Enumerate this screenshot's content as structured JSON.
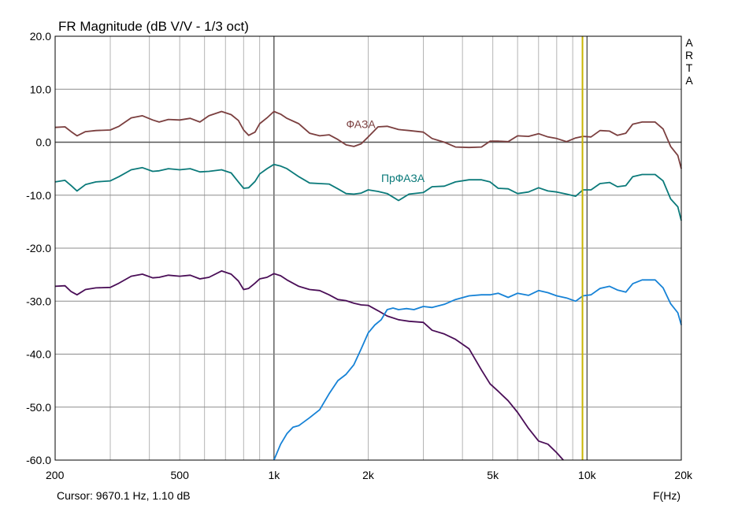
{
  "chart_data": {
    "type": "line",
    "title": "FR Magnitude (dB V/V - 1/3 oct)",
    "xlabel": "F(Hz)",
    "ylabel": "",
    "x_scale": "log",
    "xlim": [
      200,
      20000
    ],
    "ylim": [
      -60,
      20
    ],
    "grid": true,
    "brand": "ARTA",
    "cursor_readout": "Cursor: 9670.1 Hz, 1.10 dB",
    "cursor_freq": 9670.1,
    "x_ticks": [
      {
        "value": 200,
        "label": "200"
      },
      {
        "value": 500,
        "label": "500"
      },
      {
        "value": 1000,
        "label": "1k"
      },
      {
        "value": 2000,
        "label": "2k"
      },
      {
        "value": 5000,
        "label": "5k"
      },
      {
        "value": 10000,
        "label": "10k"
      },
      {
        "value": 20000,
        "label": "20k"
      }
    ],
    "y_ticks": [
      {
        "value": 20,
        "label": "20.0"
      },
      {
        "value": 10,
        "label": "10.0"
      },
      {
        "value": 0,
        "label": "0.0"
      },
      {
        "value": -10,
        "label": "-10.0"
      },
      {
        "value": -20,
        "label": "-20.0"
      },
      {
        "value": -30,
        "label": "-30.0"
      },
      {
        "value": -40,
        "label": "-40.0"
      },
      {
        "value": -50,
        "label": "-50.0"
      },
      {
        "value": -60,
        "label": "-60.0"
      }
    ],
    "series": [
      {
        "name": "ФАЗА",
        "color": "#7b3f3f",
        "label_at": [
          1700,
          2.7
        ],
        "points": [
          [
            200,
            2.8
          ],
          [
            215,
            2.9
          ],
          [
            225,
            2.0
          ],
          [
            235,
            1.2
          ],
          [
            250,
            2.0
          ],
          [
            270,
            2.2
          ],
          [
            300,
            2.3
          ],
          [
            320,
            3.0
          ],
          [
            350,
            4.6
          ],
          [
            380,
            5.0
          ],
          [
            410,
            4.2
          ],
          [
            430,
            3.8
          ],
          [
            460,
            4.3
          ],
          [
            500,
            4.2
          ],
          [
            540,
            4.5
          ],
          [
            580,
            3.8
          ],
          [
            620,
            5.0
          ],
          [
            680,
            5.8
          ],
          [
            730,
            5.2
          ],
          [
            770,
            4.1
          ],
          [
            800,
            2.3
          ],
          [
            830,
            1.3
          ],
          [
            870,
            1.9
          ],
          [
            900,
            3.5
          ],
          [
            950,
            4.6
          ],
          [
            1000,
            5.8
          ],
          [
            1050,
            5.3
          ],
          [
            1100,
            4.5
          ],
          [
            1200,
            3.5
          ],
          [
            1300,
            1.7
          ],
          [
            1400,
            1.2
          ],
          [
            1500,
            1.4
          ],
          [
            1600,
            0.5
          ],
          [
            1700,
            -0.5
          ],
          [
            1800,
            -0.8
          ],
          [
            1900,
            -0.3
          ],
          [
            2000,
            1.0
          ],
          [
            2150,
            2.9
          ],
          [
            2300,
            3.0
          ],
          [
            2500,
            2.4
          ],
          [
            2700,
            2.2
          ],
          [
            3000,
            1.9
          ],
          [
            3200,
            0.7
          ],
          [
            3500,
            0.0
          ],
          [
            3800,
            -0.9
          ],
          [
            4200,
            -1.0
          ],
          [
            4600,
            -0.9
          ],
          [
            4900,
            0.2
          ],
          [
            5200,
            0.2
          ],
          [
            5600,
            0.1
          ],
          [
            6000,
            1.2
          ],
          [
            6500,
            1.1
          ],
          [
            7000,
            1.6
          ],
          [
            7500,
            1.0
          ],
          [
            8000,
            0.7
          ],
          [
            8600,
            0.1
          ],
          [
            9200,
            0.8
          ],
          [
            9700,
            1.1
          ],
          [
            10300,
            1.0
          ],
          [
            11000,
            2.2
          ],
          [
            11800,
            2.1
          ],
          [
            12500,
            1.3
          ],
          [
            13300,
            1.7
          ],
          [
            14000,
            3.4
          ],
          [
            15000,
            3.8
          ],
          [
            16500,
            3.8
          ],
          [
            17500,
            2.5
          ],
          [
            18500,
            -0.8
          ],
          [
            19500,
            -2.5
          ],
          [
            20000,
            -5.0
          ]
        ]
      },
      {
        "name": "ПрФАЗА",
        "color": "#0b7a7a",
        "label_at": [
          2200,
          -7.5
        ],
        "points": [
          [
            200,
            -7.5
          ],
          [
            215,
            -7.2
          ],
          [
            225,
            -8.2
          ],
          [
            235,
            -9.2
          ],
          [
            250,
            -8.0
          ],
          [
            270,
            -7.5
          ],
          [
            300,
            -7.3
          ],
          [
            320,
            -6.5
          ],
          [
            350,
            -5.2
          ],
          [
            380,
            -4.8
          ],
          [
            410,
            -5.5
          ],
          [
            430,
            -5.4
          ],
          [
            460,
            -5.0
          ],
          [
            500,
            -5.2
          ],
          [
            540,
            -5.0
          ],
          [
            580,
            -5.6
          ],
          [
            620,
            -5.5
          ],
          [
            680,
            -5.2
          ],
          [
            730,
            -5.8
          ],
          [
            770,
            -7.5
          ],
          [
            800,
            -8.7
          ],
          [
            830,
            -8.6
          ],
          [
            870,
            -7.4
          ],
          [
            900,
            -6.0
          ],
          [
            950,
            -5.0
          ],
          [
            1000,
            -4.2
          ],
          [
            1050,
            -4.5
          ],
          [
            1100,
            -5.0
          ],
          [
            1200,
            -6.5
          ],
          [
            1300,
            -7.7
          ],
          [
            1400,
            -7.8
          ],
          [
            1500,
            -7.9
          ],
          [
            1600,
            -8.8
          ],
          [
            1700,
            -9.7
          ],
          [
            1800,
            -9.8
          ],
          [
            1900,
            -9.6
          ],
          [
            2000,
            -9.0
          ],
          [
            2150,
            -9.3
          ],
          [
            2300,
            -9.7
          ],
          [
            2500,
            -11.0
          ],
          [
            2700,
            -9.8
          ],
          [
            3000,
            -9.5
          ],
          [
            3200,
            -8.4
          ],
          [
            3500,
            -8.3
          ],
          [
            3800,
            -7.5
          ],
          [
            4200,
            -7.1
          ],
          [
            4600,
            -7.1
          ],
          [
            4900,
            -7.5
          ],
          [
            5200,
            -8.7
          ],
          [
            5600,
            -8.8
          ],
          [
            6000,
            -9.7
          ],
          [
            6500,
            -9.4
          ],
          [
            7000,
            -8.6
          ],
          [
            7500,
            -9.2
          ],
          [
            8000,
            -9.4
          ],
          [
            8600,
            -9.8
          ],
          [
            9200,
            -10.2
          ],
          [
            9700,
            -9.0
          ],
          [
            10300,
            -9.0
          ],
          [
            11000,
            -7.8
          ],
          [
            11800,
            -7.6
          ],
          [
            12500,
            -8.4
          ],
          [
            13300,
            -8.2
          ],
          [
            14000,
            -6.5
          ],
          [
            15000,
            -6.1
          ],
          [
            16500,
            -6.1
          ],
          [
            17500,
            -7.3
          ],
          [
            18500,
            -10.7
          ],
          [
            19500,
            -12.2
          ],
          [
            20000,
            -14.8
          ]
        ]
      },
      {
        "name": "",
        "color": "#4a0e57",
        "label_at": null,
        "points": [
          [
            200,
            -27.2
          ],
          [
            215,
            -27.1
          ],
          [
            225,
            -28.2
          ],
          [
            235,
            -28.8
          ],
          [
            250,
            -27.8
          ],
          [
            270,
            -27.5
          ],
          [
            300,
            -27.4
          ],
          [
            320,
            -26.6
          ],
          [
            350,
            -25.3
          ],
          [
            380,
            -24.9
          ],
          [
            410,
            -25.6
          ],
          [
            430,
            -25.5
          ],
          [
            460,
            -25.1
          ],
          [
            500,
            -25.3
          ],
          [
            540,
            -25.1
          ],
          [
            580,
            -25.8
          ],
          [
            620,
            -25.5
          ],
          [
            680,
            -24.3
          ],
          [
            730,
            -24.9
          ],
          [
            770,
            -26.2
          ],
          [
            800,
            -27.8
          ],
          [
            830,
            -27.6
          ],
          [
            870,
            -26.6
          ],
          [
            900,
            -25.8
          ],
          [
            950,
            -25.5
          ],
          [
            1000,
            -24.8
          ],
          [
            1050,
            -25.2
          ],
          [
            1100,
            -26.0
          ],
          [
            1200,
            -27.2
          ],
          [
            1300,
            -27.8
          ],
          [
            1400,
            -28.0
          ],
          [
            1500,
            -28.8
          ],
          [
            1600,
            -29.7
          ],
          [
            1700,
            -29.9
          ],
          [
            1800,
            -30.4
          ],
          [
            1900,
            -30.7
          ],
          [
            2000,
            -30.8
          ],
          [
            2150,
            -31.8
          ],
          [
            2300,
            -32.8
          ],
          [
            2500,
            -33.5
          ],
          [
            2700,
            -33.8
          ],
          [
            3000,
            -34.0
          ],
          [
            3200,
            -35.5
          ],
          [
            3500,
            -36.2
          ],
          [
            3800,
            -37.2
          ],
          [
            4200,
            -39.0
          ],
          [
            4600,
            -43.0
          ],
          [
            4900,
            -45.6
          ],
          [
            5200,
            -47.0
          ],
          [
            5600,
            -48.8
          ],
          [
            6000,
            -51.0
          ],
          [
            6500,
            -54.0
          ],
          [
            7000,
            -56.4
          ],
          [
            7500,
            -57.0
          ],
          [
            8000,
            -58.6
          ],
          [
            8400,
            -60.0
          ]
        ]
      },
      {
        "name": "",
        "color": "#1682d6",
        "label_at": null,
        "points": [
          [
            1000,
            -60.0
          ],
          [
            1050,
            -57.0
          ],
          [
            1100,
            -55.0
          ],
          [
            1150,
            -53.8
          ],
          [
            1200,
            -53.5
          ],
          [
            1300,
            -52.0
          ],
          [
            1400,
            -50.5
          ],
          [
            1500,
            -47.5
          ],
          [
            1600,
            -45.0
          ],
          [
            1700,
            -43.8
          ],
          [
            1800,
            -42.0
          ],
          [
            1900,
            -39.0
          ],
          [
            2000,
            -36.0
          ],
          [
            2100,
            -34.5
          ],
          [
            2200,
            -33.5
          ],
          [
            2300,
            -31.6
          ],
          [
            2400,
            -31.3
          ],
          [
            2500,
            -31.6
          ],
          [
            2650,
            -31.4
          ],
          [
            2800,
            -31.6
          ],
          [
            3000,
            -31.0
          ],
          [
            3200,
            -31.2
          ],
          [
            3500,
            -30.6
          ],
          [
            3800,
            -29.7
          ],
          [
            4200,
            -29.0
          ],
          [
            4600,
            -28.8
          ],
          [
            4900,
            -28.8
          ],
          [
            5200,
            -28.5
          ],
          [
            5600,
            -29.3
          ],
          [
            6000,
            -28.5
          ],
          [
            6500,
            -28.9
          ],
          [
            7000,
            -28.0
          ],
          [
            7500,
            -28.4
          ],
          [
            8000,
            -29.0
          ],
          [
            8600,
            -29.4
          ],
          [
            9200,
            -30.0
          ],
          [
            9700,
            -29.0
          ],
          [
            10300,
            -28.8
          ],
          [
            11000,
            -27.6
          ],
          [
            11800,
            -27.2
          ],
          [
            12500,
            -27.9
          ],
          [
            13300,
            -28.3
          ],
          [
            14000,
            -26.7
          ],
          [
            15000,
            -26.0
          ],
          [
            16500,
            -26.0
          ],
          [
            17500,
            -27.5
          ],
          [
            18500,
            -30.5
          ],
          [
            19500,
            -32.2
          ],
          [
            20000,
            -34.5
          ]
        ]
      }
    ]
  }
}
